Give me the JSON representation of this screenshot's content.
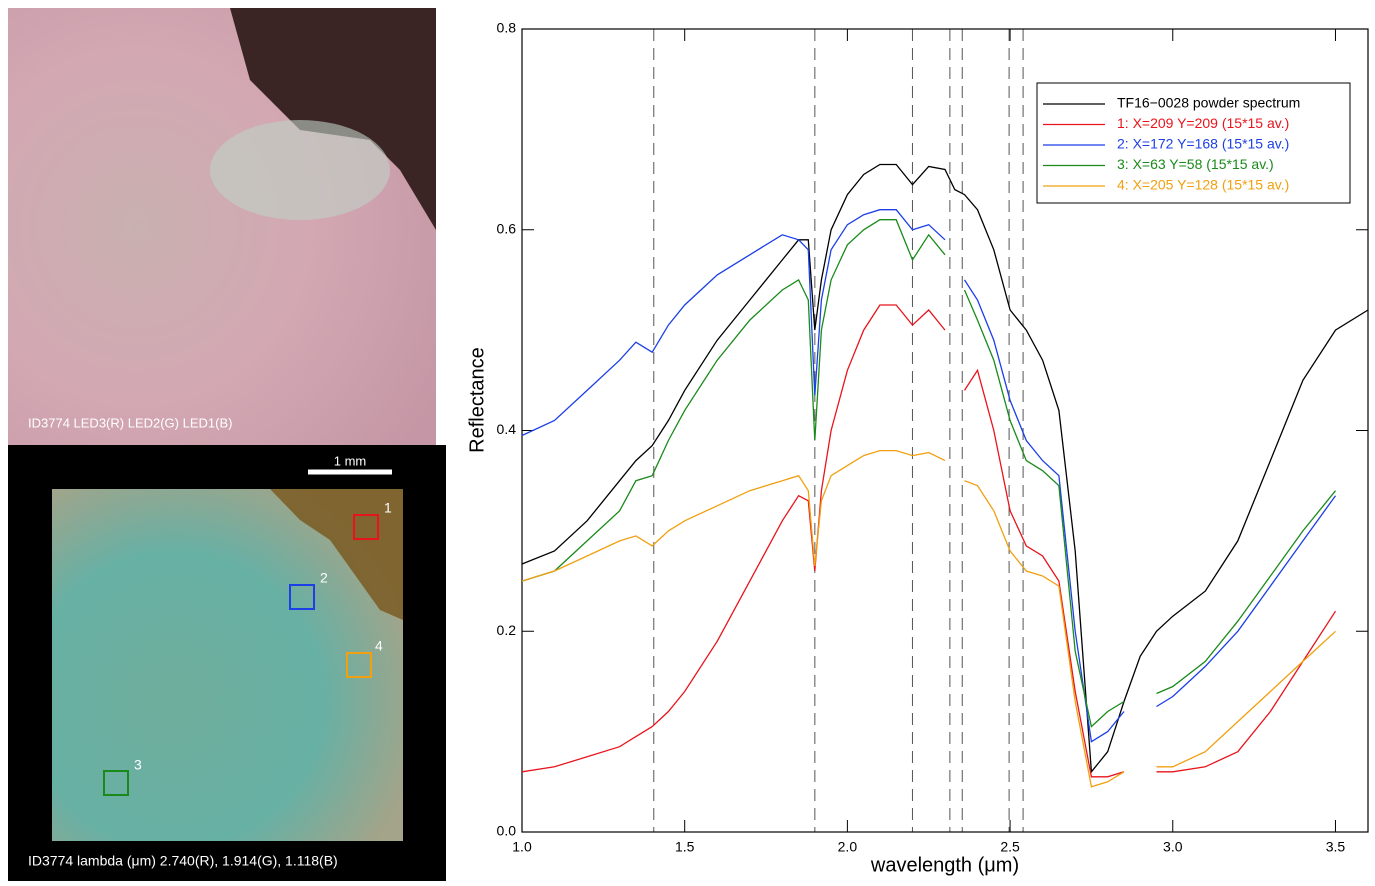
{
  "panels": {
    "top_caption": "ID3774  LED3(R) LED2(G) LED1(B)",
    "scale_bar": "1 mm",
    "box_labels": [
      "1",
      "2",
      "3",
      "4"
    ],
    "bottom_caption": "ID3774  lambda (μm) 2.740(R), 1.914(G), 1.118(B)"
  },
  "chart_data": {
    "type": "line",
    "xlabel": "wavelength (μm)",
    "ylabel": "Reflectance",
    "xlim": [
      1.0,
      3.6
    ],
    "ylim": [
      0,
      0.8
    ],
    "xticks": [
      {
        "value": 1.0,
        "label": "1.0"
      },
      1.5,
      {
        "value": 2.0,
        "label": "2.0"
      },
      2.5,
      {
        "value": 3.0,
        "label": "3.0"
      },
      3.5
    ],
    "yticks": [
      {
        "value": 0,
        "label": "0.0"
      },
      0.2,
      0.4,
      0.6,
      0.8
    ],
    "legend": "upper right",
    "reference_lines": [
      1.405,
      1.9,
      2.2,
      2.315,
      2.353,
      2.497,
      2.54
    ],
    "x": [
      1.0,
      1.1,
      1.2,
      1.3,
      1.35,
      1.4,
      1.45,
      1.5,
      1.6,
      1.7,
      1.8,
      1.85,
      1.88,
      1.9,
      1.92,
      1.95,
      2.0,
      2.05,
      2.1,
      2.15,
      2.2,
      2.25,
      2.3,
      2.33,
      2.36,
      2.4,
      2.45,
      2.5,
      2.55,
      2.6,
      2.65,
      2.7,
      2.75,
      2.8,
      2.85,
      2.9,
      2.95,
      3.0,
      3.1,
      3.2,
      3.3,
      3.4,
      3.5,
      3.6
    ],
    "series": [
      {
        "name": "TF16−0028 powder spectrum",
        "color": "#000000",
        "values": [
          0.267,
          0.28,
          0.31,
          0.35,
          0.37,
          0.385,
          0.41,
          0.44,
          0.49,
          0.53,
          0.57,
          0.59,
          0.59,
          0.5,
          0.55,
          0.6,
          0.635,
          0.655,
          0.665,
          0.665,
          0.645,
          0.663,
          0.66,
          0.64,
          0.635,
          0.62,
          0.58,
          0.52,
          0.5,
          0.47,
          0.42,
          0.28,
          0.06,
          0.08,
          0.13,
          0.175,
          0.2,
          0.215,
          0.24,
          0.29,
          0.37,
          0.45,
          0.5,
          0.52
        ]
      },
      {
        "name": "1: X=209 Y=209 (15*15 av.)",
        "color": "#e8141c",
        "values": [
          0.06,
          0.065,
          0.075,
          0.085,
          0.095,
          0.105,
          0.12,
          0.14,
          0.19,
          0.25,
          0.31,
          0.335,
          0.33,
          0.26,
          0.34,
          0.4,
          0.46,
          0.5,
          0.525,
          0.525,
          0.505,
          0.52,
          0.5,
          null,
          0.44,
          0.46,
          0.4,
          0.32,
          0.285,
          0.275,
          0.25,
          0.14,
          0.055,
          0.055,
          0.06,
          null,
          0.06,
          0.06,
          0.065,
          0.08,
          0.12,
          0.17,
          0.22,
          null
        ]
      },
      {
        "name": "2: X=172 Y=168 (15*15 av.)",
        "color": "#1c3fe8",
        "values": [
          0.395,
          0.41,
          0.44,
          0.47,
          0.488,
          0.478,
          0.505,
          0.525,
          0.555,
          0.575,
          0.595,
          0.59,
          0.58,
          0.435,
          0.53,
          0.58,
          0.605,
          0.615,
          0.62,
          0.62,
          0.6,
          0.605,
          0.59,
          null,
          0.55,
          0.53,
          0.49,
          0.43,
          0.39,
          0.37,
          0.355,
          0.2,
          0.09,
          0.1,
          0.12,
          null,
          0.125,
          0.135,
          0.165,
          0.2,
          0.245,
          0.29,
          0.335,
          null
        ]
      },
      {
        "name": "3: X=63 Y=58 (15*15 av.)",
        "color": "#1a8a1a",
        "values": [
          0.25,
          0.26,
          0.29,
          0.32,
          0.35,
          0.355,
          0.39,
          0.42,
          0.47,
          0.51,
          0.54,
          0.55,
          0.53,
          0.39,
          0.5,
          0.55,
          0.585,
          0.6,
          0.61,
          0.61,
          0.57,
          0.595,
          0.575,
          null,
          0.54,
          0.51,
          0.47,
          0.41,
          0.37,
          0.36,
          0.345,
          0.18,
          0.105,
          0.12,
          0.13,
          null,
          0.138,
          0.145,
          0.17,
          0.21,
          0.255,
          0.3,
          0.34,
          null
        ]
      },
      {
        "name": "4: X=205 Y=128 (15*15 av.)",
        "color": "#f0a010",
        "values": [
          0.25,
          0.26,
          0.275,
          0.29,
          0.295,
          0.285,
          0.3,
          0.31,
          0.325,
          0.34,
          0.35,
          0.355,
          0.34,
          0.265,
          0.33,
          0.355,
          0.365,
          0.375,
          0.38,
          0.38,
          0.375,
          0.378,
          0.37,
          null,
          0.35,
          0.345,
          0.32,
          0.28,
          0.26,
          0.255,
          0.245,
          0.13,
          0.045,
          0.05,
          0.06,
          null,
          0.065,
          0.065,
          0.08,
          0.11,
          0.14,
          0.17,
          0.2,
          null
        ]
      }
    ]
  }
}
